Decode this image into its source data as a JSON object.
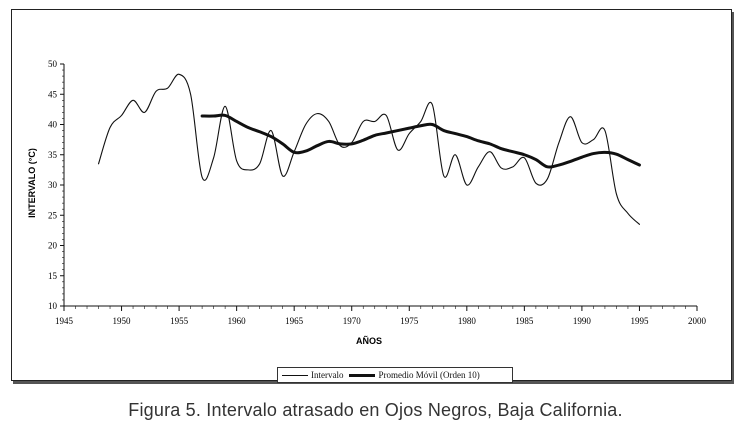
{
  "caption": "Figura 5. Intervalo atrasado en Ojos Negros, Baja California.",
  "chart_data": {
    "type": "line",
    "xlabel": "AÑOS",
    "ylabel": "INTERVALO (°C)",
    "xlim": [
      1945,
      2000
    ],
    "ylim": [
      10,
      50
    ],
    "x_ticks": [
      1945,
      1950,
      1955,
      1960,
      1965,
      1970,
      1975,
      1980,
      1985,
      1990,
      1995,
      2000
    ],
    "y_ticks": [
      10,
      15,
      20,
      25,
      30,
      35,
      40,
      45,
      50
    ],
    "grid": false,
    "legend_position": "bottom",
    "series": [
      {
        "name": "Intervalo",
        "color": "#111111",
        "line_width": "thin",
        "x": [
          1948,
          1949,
          1950,
          1951,
          1952,
          1953,
          1954,
          1955,
          1956,
          1957,
          1958,
          1959,
          1960,
          1961,
          1962,
          1963,
          1964,
          1965,
          1966,
          1967,
          1968,
          1969,
          1970,
          1971,
          1972,
          1973,
          1974,
          1975,
          1976,
          1977,
          1978,
          1979,
          1980,
          1981,
          1982,
          1983,
          1984,
          1985,
          1986,
          1987,
          1988,
          1989,
          1990,
          1991,
          1992,
          1993,
          1994,
          1995
        ],
        "y": [
          33.5,
          39.5,
          41.5,
          44.0,
          42.0,
          45.5,
          46.0,
          48.3,
          45.0,
          31.3,
          34.5,
          43.0,
          34.0,
          32.5,
          33.5,
          39.0,
          31.5,
          35.5,
          40.0,
          41.8,
          40.5,
          36.5,
          37.0,
          40.5,
          40.5,
          41.5,
          35.8,
          38.5,
          40.5,
          43.3,
          31.5,
          35.0,
          30.0,
          33.0,
          35.5,
          32.8,
          33.0,
          34.5,
          30.3,
          31.0,
          37.0,
          41.3,
          37.0,
          37.5,
          39.0,
          28.5,
          25.3,
          23.5
        ]
      },
      {
        "name": "Promedio Móvil (Orden 10)",
        "color": "#111111",
        "line_width": "thick",
        "x": [
          1957,
          1958,
          1959,
          1960,
          1961,
          1962,
          1963,
          1964,
          1965,
          1966,
          1967,
          1968,
          1969,
          1970,
          1971,
          1972,
          1973,
          1974,
          1975,
          1976,
          1977,
          1978,
          1979,
          1980,
          1981,
          1982,
          1983,
          1984,
          1985,
          1986,
          1987,
          1988,
          1989,
          1990,
          1991,
          1992,
          1993,
          1994,
          1995
        ],
        "y": [
          41.4,
          41.4,
          41.5,
          40.5,
          39.5,
          38.8,
          38.0,
          36.8,
          35.4,
          35.6,
          36.5,
          37.2,
          36.8,
          36.8,
          37.4,
          38.2,
          38.6,
          39.0,
          39.4,
          39.8,
          40.0,
          39.0,
          38.5,
          38.0,
          37.3,
          36.8,
          36.0,
          35.5,
          35.0,
          34.2,
          33.0,
          33.3,
          33.9,
          34.6,
          35.2,
          35.4,
          35.1,
          34.2,
          33.3
        ]
      }
    ]
  }
}
